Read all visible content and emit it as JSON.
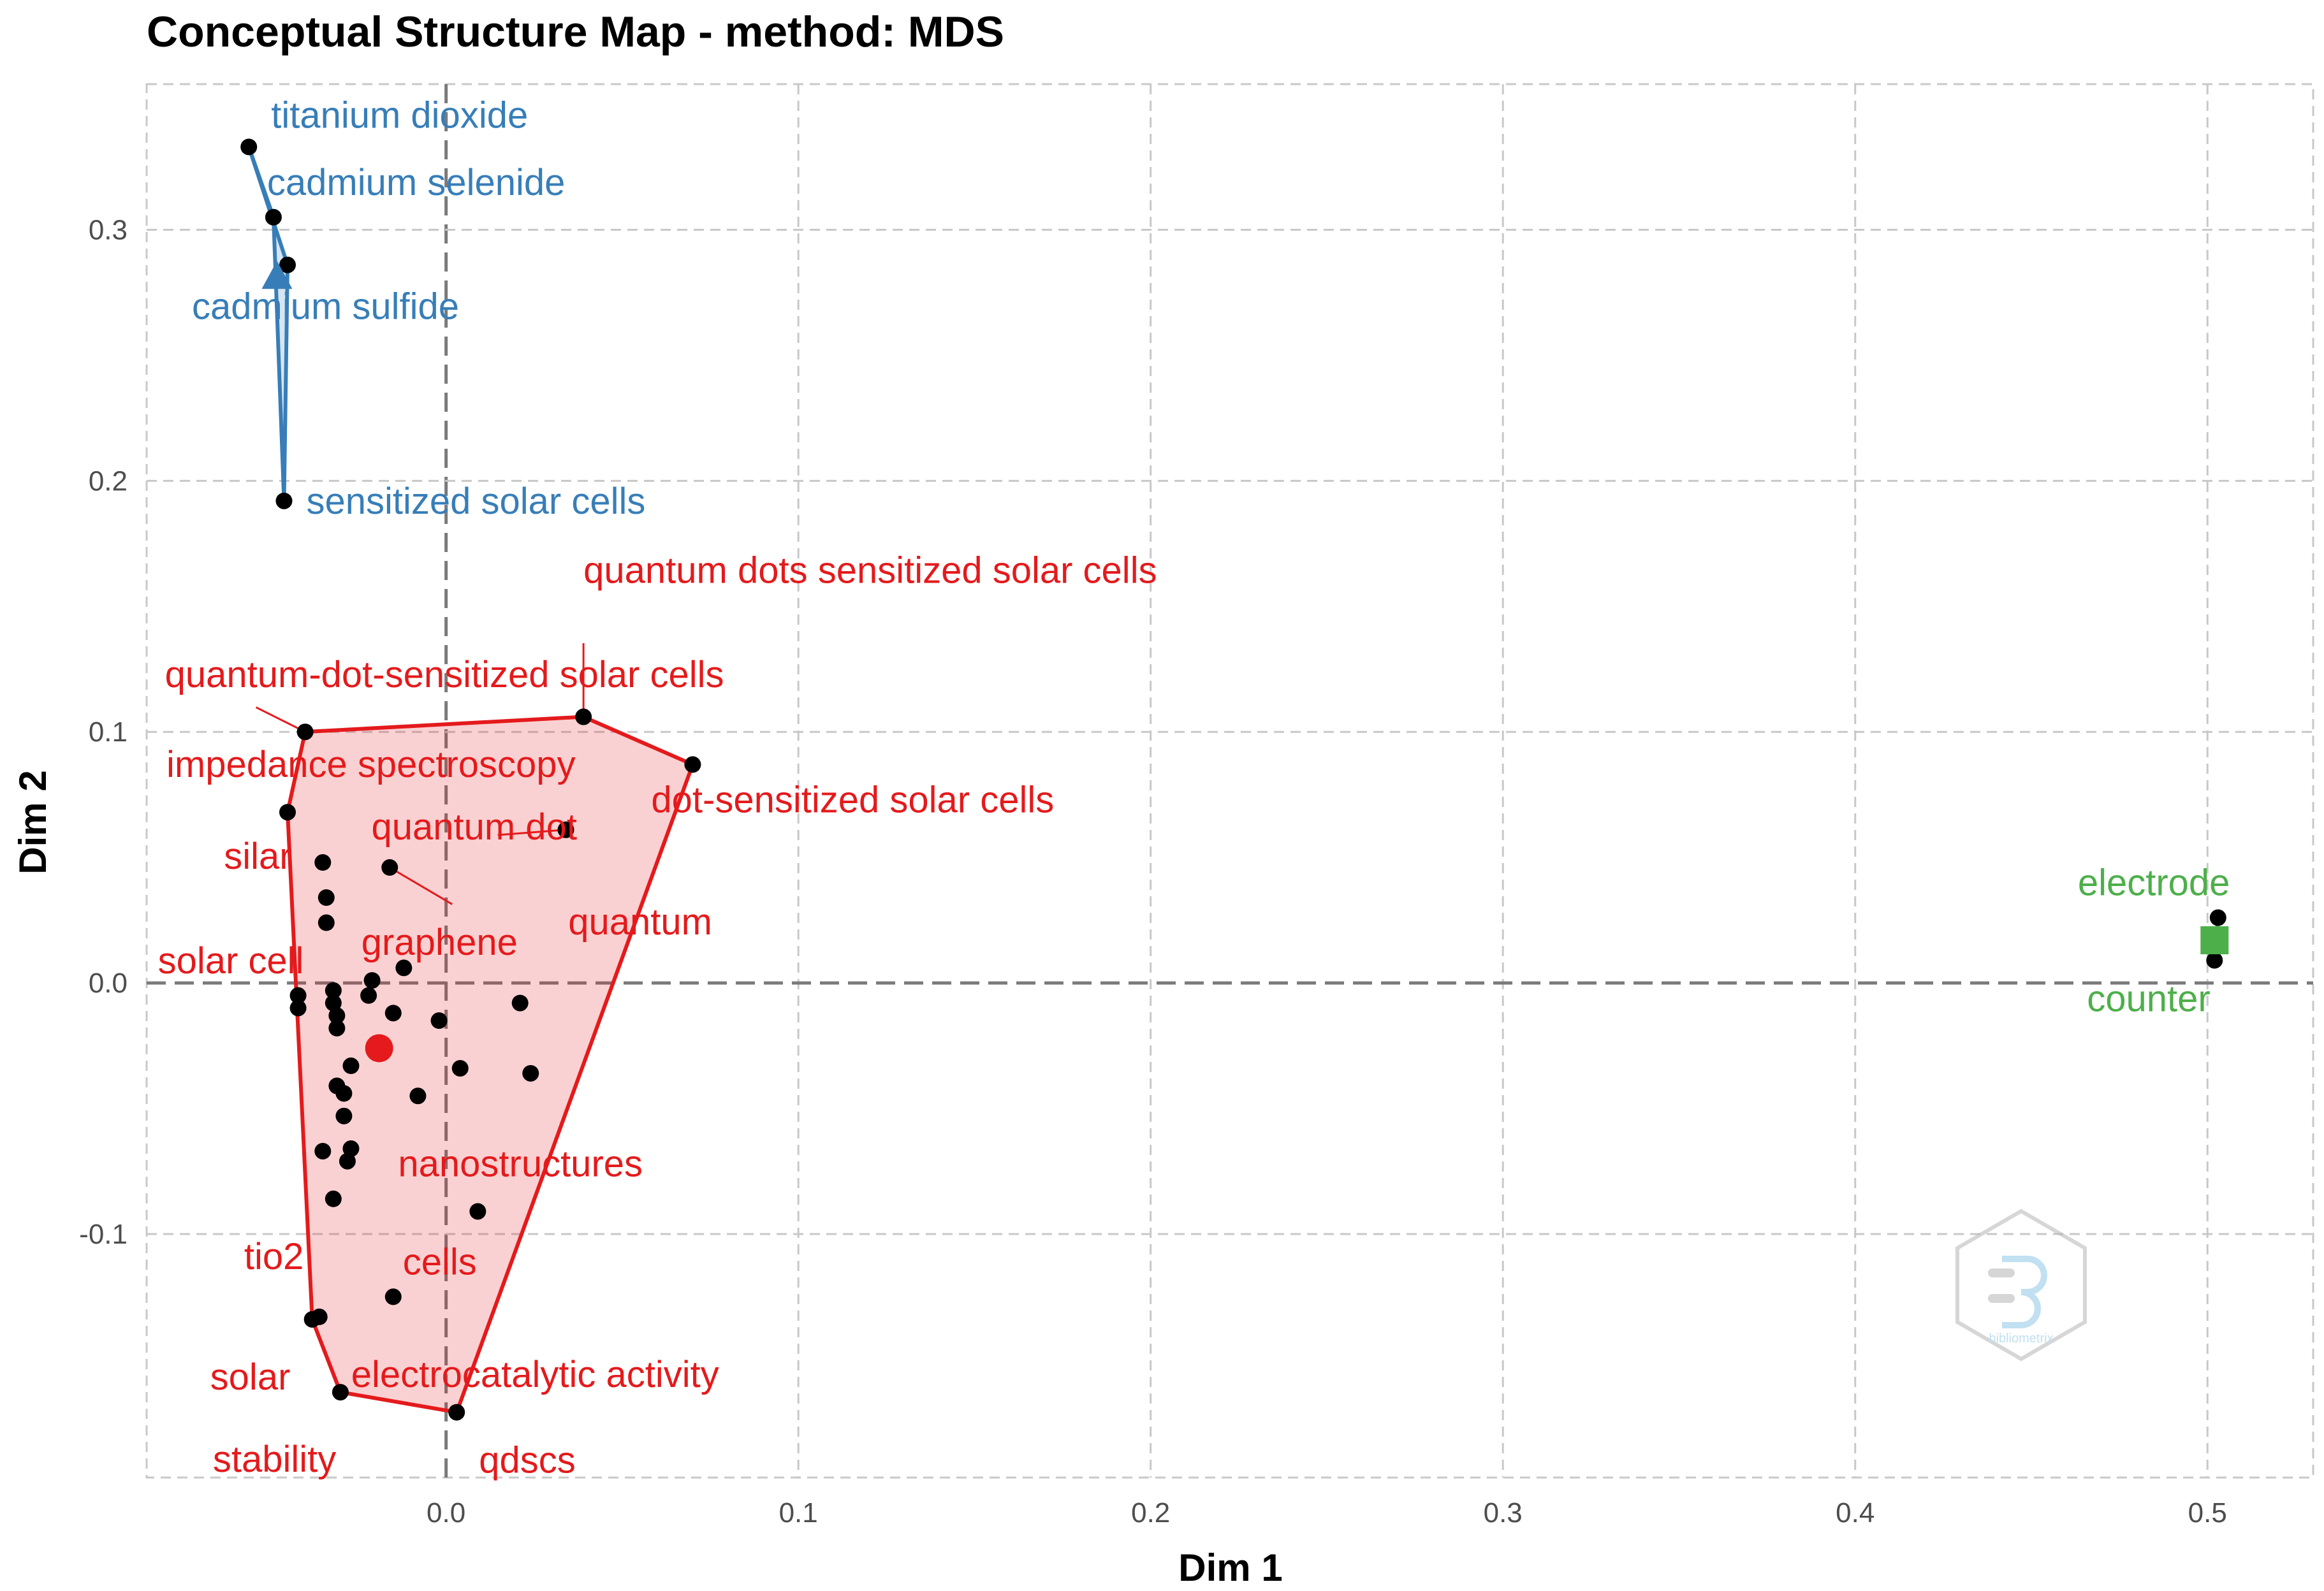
{
  "chart_data": {
    "type": "scatter",
    "title": "Conceptual Structure Map - method: MDS",
    "xlabel": "Dim 1",
    "ylabel": "Dim 2",
    "xlim": [
      -0.085,
      0.53
    ],
    "ylim": [
      -0.197,
      0.358
    ],
    "x_ticks": [
      0.0,
      0.1,
      0.2,
      0.3,
      0.4,
      0.5
    ],
    "x_tick_labels": [
      "0.0",
      "0.1",
      "0.2",
      "0.3",
      "0.4",
      "0.5"
    ],
    "y_ticks": [
      -0.1,
      0.0,
      0.1,
      0.2,
      0.3
    ],
    "y_tick_labels": [
      "-0.1",
      "0.0",
      "0.1",
      "0.2",
      "0.3"
    ],
    "grid": true,
    "clusters": [
      {
        "name": "cluster-1",
        "color": "#e41a1c",
        "centroid": [
          -0.019,
          -0.026
        ],
        "hull": [
          [
            -0.04,
            0.1
          ],
          [
            0.039,
            0.106
          ],
          [
            0.07,
            0.087
          ],
          [
            0.003,
            -0.171
          ],
          [
            -0.03,
            -0.163
          ],
          [
            -0.038,
            -0.134
          ],
          [
            -0.045,
            0.068
          ]
        ],
        "labeled_points": [
          {
            "label": "quantum dots sensitized solar cells",
            "x": 0.039,
            "y": 0.106
          },
          {
            "label": "quantum-dot-sensitized solar cells",
            "x": -0.04,
            "y": 0.1
          },
          {
            "label": "impedance spectroscopy",
            "x": -0.045,
            "y": 0.068
          },
          {
            "label": "dot-sensitized solar cells",
            "x": 0.07,
            "y": 0.087
          },
          {
            "label": "quantum dot",
            "x": 0.034,
            "y": 0.061
          },
          {
            "label": "silar",
            "x": -0.035,
            "y": 0.048
          },
          {
            "label": "quantum",
            "x": -0.016,
            "y": 0.046
          },
          {
            "label": "graphene",
            "x": -0.034,
            "y": 0.034
          },
          {
            "label": "solar cell",
            "x": -0.042,
            "y": -0.005
          },
          {
            "label": "nanostructures",
            "x": 0.009,
            "y": -0.091
          },
          {
            "label": "tio2",
            "x": -0.032,
            "y": -0.086
          },
          {
            "label": "cells",
            "x": -0.015,
            "y": -0.125
          },
          {
            "label": "solar",
            "x": -0.038,
            "y": -0.134
          },
          {
            "label": "electrocatalytic activity",
            "x": -0.036,
            "y": -0.133
          },
          {
            "label": "stability",
            "x": -0.03,
            "y": -0.163
          },
          {
            "label": "qdscs",
            "x": 0.003,
            "y": -0.171
          }
        ],
        "unlabeled_points": [
          [
            -0.034,
            0.024
          ],
          [
            -0.032,
            -0.003
          ],
          [
            -0.032,
            -0.008
          ],
          [
            -0.031,
            -0.013
          ],
          [
            -0.031,
            -0.018
          ],
          [
            -0.031,
            -0.041
          ],
          [
            -0.029,
            -0.044
          ],
          [
            -0.029,
            -0.053
          ],
          [
            -0.027,
            -0.066
          ],
          [
            -0.028,
            -0.071
          ],
          [
            -0.035,
            -0.067
          ],
          [
            -0.027,
            -0.033
          ],
          [
            -0.022,
            -0.005
          ],
          [
            -0.021,
            0.001
          ],
          [
            -0.015,
            -0.012
          ],
          [
            -0.012,
            0.006
          ],
          [
            -0.008,
            -0.045
          ],
          [
            -0.002,
            -0.015
          ],
          [
            0.004,
            -0.034
          ],
          [
            0.021,
            -0.008
          ],
          [
            0.024,
            -0.036
          ],
          [
            -0.042,
            -0.01
          ]
        ]
      },
      {
        "name": "cluster-2",
        "color": "#377eb8",
        "centroid": [
          -0.048,
          0.281
        ],
        "hull": [
          [
            -0.056,
            0.333
          ],
          [
            -0.045,
            0.286
          ],
          [
            -0.046,
            0.192
          ],
          [
            -0.049,
            0.305
          ]
        ],
        "labeled_points": [
          {
            "label": "titanium dioxide",
            "x": -0.056,
            "y": 0.333
          },
          {
            "label": "cadmium selenide",
            "x": -0.049,
            "y": 0.305
          },
          {
            "label": "cadmium sulfide",
            "x": -0.045,
            "y": 0.286
          },
          {
            "label": "sensitized solar cells",
            "x": -0.046,
            "y": 0.192
          }
        ],
        "unlabeled_points": []
      },
      {
        "name": "cluster-3",
        "color": "#4daf4a",
        "centroid": [
          0.502,
          0.017
        ],
        "hull": [
          [
            0.503,
            0.026
          ],
          [
            0.502,
            0.009
          ]
        ],
        "labeled_points": [
          {
            "label": "electrode",
            "x": 0.503,
            "y": 0.026
          },
          {
            "label": "counter",
            "x": 0.502,
            "y": 0.009
          }
        ],
        "unlabeled_points": []
      }
    ]
  },
  "watermark": {
    "icon": "bibliometrix-hexagon-logo",
    "text": "bibliometrix"
  }
}
